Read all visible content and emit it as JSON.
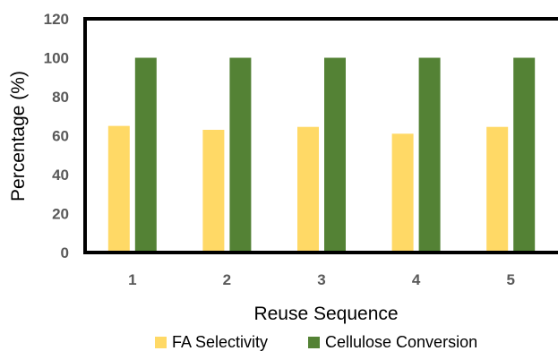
{
  "chart_data": {
    "type": "bar",
    "title": "",
    "xlabel": "Reuse Sequence",
    "ylabel": "Percentage (%)",
    "categories": [
      "1",
      "2",
      "3",
      "4",
      "5"
    ],
    "yticks": [
      0,
      20,
      40,
      60,
      80,
      100,
      120
    ],
    "ylim": [
      0,
      120
    ],
    "grid": false,
    "legend_position": "bottom",
    "series": [
      {
        "name": "FA Selectivity",
        "color": "#FFD966",
        "values": [
          65,
          63,
          64.5,
          61,
          64.5
        ]
      },
      {
        "name": "Cellulose Conversion",
        "color": "#548235",
        "values": [
          100,
          100,
          100,
          100,
          100
        ]
      }
    ]
  }
}
